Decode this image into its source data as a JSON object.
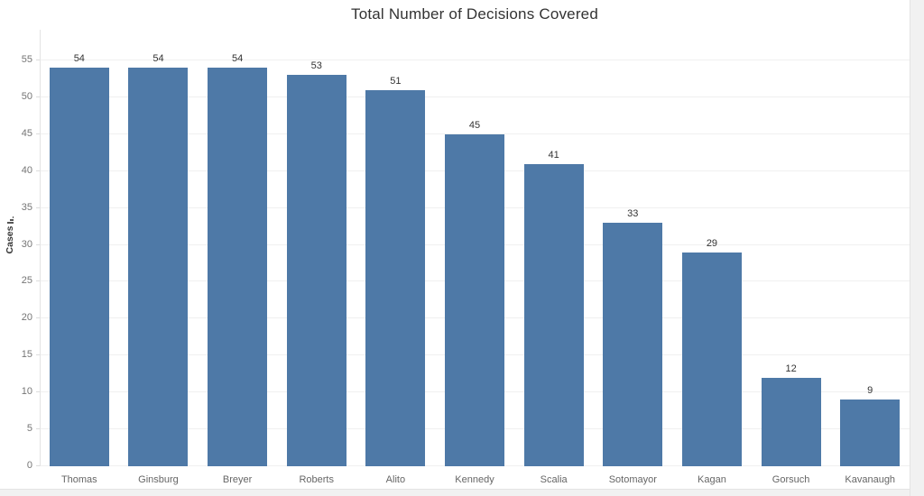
{
  "title": "Total Number of Decisions Covered",
  "y_axis": {
    "label": "Cases",
    "sort_icon": "sort-descending-bars-icon",
    "ticks": [
      0,
      5,
      10,
      15,
      20,
      25,
      30,
      35,
      40,
      45,
      50,
      55
    ]
  },
  "chart_data": {
    "type": "bar",
    "title": "Total Number of Decisions Covered",
    "categories": [
      "Thomas",
      "Ginsburg",
      "Breyer",
      "Roberts",
      "Alito",
      "Kennedy",
      "Scalia",
      "Sotomayor",
      "Kagan",
      "Gorsuch",
      "Kavanaugh"
    ],
    "values": [
      54,
      54,
      54,
      53,
      51,
      45,
      41,
      33,
      29,
      12,
      9
    ],
    "xlabel": "",
    "ylabel": "Cases",
    "ylim": [
      0,
      55
    ],
    "tick_interval": 5,
    "grid": true,
    "value_labels_shown": true,
    "legend": "none",
    "bar_color": "#4e79a7"
  },
  "colors": {
    "bar": "#4e79a7",
    "title_text": "#333333",
    "value_label_text": "#333333",
    "tick_label_text": "#757575",
    "category_label_text": "#666666",
    "gridline": "#f0f0f0",
    "axis_line": "#e4e4e4",
    "scroll_strip_bg": "#f1f1f1",
    "scroll_strip_border": "#e3e3e3",
    "background": "#ffffff"
  }
}
